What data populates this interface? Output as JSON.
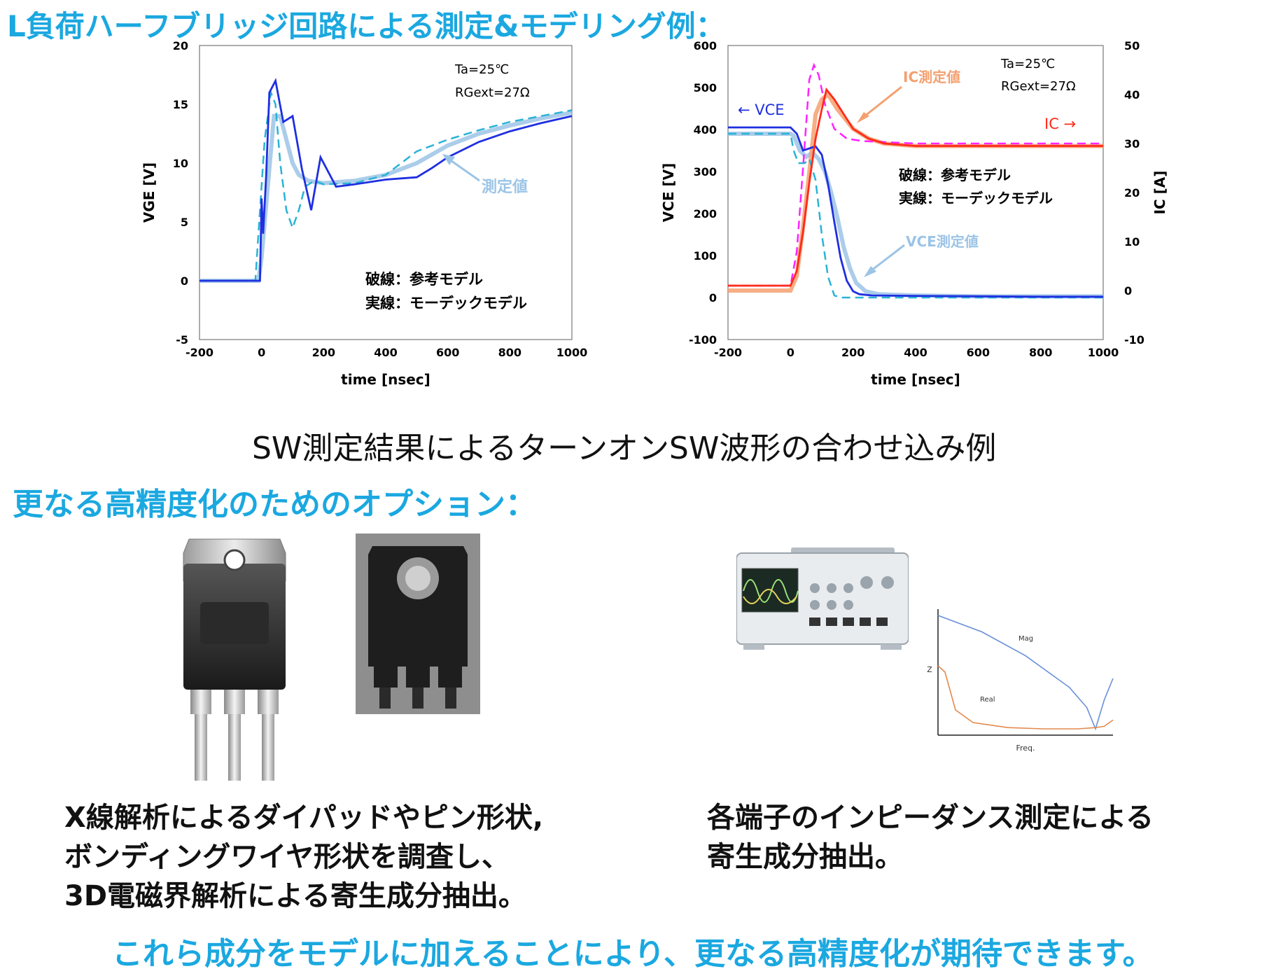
{
  "title": "L負荷ハーフブリッジ回路による測定&モデリング例：",
  "subtitle": "SW測定結果によるターンオンSW波形の合わせ込み例",
  "options_title": "更なる高精度化のためのオプション：",
  "caption_left": [
    "X線解析によるダイパッドやピン形状,",
    "ボンディングワイヤ形状を調査し、",
    "3D電磁界解析による寄生成分抽出。"
  ],
  "caption_right": [
    "各端子のインピーダンス測定による",
    "寄生成分抽出。"
  ],
  "conclusion": "これら成分をモデルに加えることにより、更なる高精度化が期待できます。",
  "colors": {
    "accent": "#1ba8e0",
    "model_blue": "#1f2fe0",
    "meas_light_blue": "#9cc4e6",
    "ref_dash_blue": "#2ab3d6",
    "ic_red": "#ff2a1a",
    "ic_meas_orange": "#f4a070",
    "ic_ref_magenta": "#ff22ff"
  },
  "chart_data": [
    {
      "type": "line",
      "xlabel": "time [nsec]",
      "ylabel": "VGE [V]",
      "xlim": [
        -200,
        1000
      ],
      "ylim": [
        -5,
        20
      ],
      "xticks": [
        -200,
        0,
        200,
        400,
        600,
        800,
        1000
      ],
      "yticks": [
        -5,
        0,
        5,
        10,
        15,
        20
      ],
      "annotations": [
        "Ta=25℃",
        "RGext=27Ω",
        "測定値",
        "破線：参考モデル",
        "実線：モーデックモデル"
      ],
      "series": [
        {
          "name": "測定値",
          "style": "measured",
          "x": [
            -200,
            -10,
            0,
            20,
            40,
            60,
            80,
            100,
            120,
            150,
            200,
            300,
            400,
            500,
            600,
            700,
            800,
            900,
            1000
          ],
          "y": [
            0,
            0,
            2,
            8,
            14,
            14,
            12,
            10,
            9,
            8.5,
            8.3,
            8.5,
            9,
            10,
            11.5,
            12.5,
            13.2,
            13.8,
            14.3
          ]
        },
        {
          "name": "破線：参考モデル",
          "style": "dashed",
          "x": [
            -200,
            -20,
            -5,
            10,
            30,
            45,
            60,
            80,
            100,
            120,
            140,
            170,
            200,
            300,
            400,
            500,
            600,
            700,
            800,
            900,
            1000
          ],
          "y": [
            0,
            0,
            6,
            12,
            16,
            15,
            10,
            6,
            4.5,
            6,
            8,
            8.5,
            8.2,
            8.3,
            9,
            11,
            12,
            12.8,
            13.5,
            14,
            14.5
          ]
        },
        {
          "name": "実線：モーデックモデル",
          "style": "solid",
          "x": [
            -200,
            -5,
            0,
            5,
            15,
            25,
            45,
            70,
            100,
            130,
            160,
            190,
            240,
            300,
            350,
            400,
            450,
            500,
            550,
            600,
            700,
            800,
            900,
            1000
          ],
          "y": [
            0,
            0,
            7,
            4,
            9,
            16,
            17,
            13.5,
            14,
            9.5,
            6,
            10.5,
            8,
            8.2,
            8.4,
            8.6,
            8.7,
            8.8,
            9.6,
            10.5,
            11.8,
            12.7,
            13.4,
            14
          ]
        }
      ]
    },
    {
      "type": "line",
      "xlabel": "time [nsec]",
      "ylabel": "VCE [V]",
      "y2label": "IC [A]",
      "xlim": [
        -200,
        1000
      ],
      "ylim": [
        -100,
        600
      ],
      "y2lim": [
        -10,
        50
      ],
      "xticks": [
        -200,
        0,
        200,
        400,
        600,
        800,
        1000
      ],
      "yticks": [
        -100,
        0,
        100,
        200,
        300,
        400,
        500,
        600
      ],
      "y2ticks": [
        -10,
        0,
        10,
        20,
        30,
        40,
        50
      ],
      "annotations": [
        "Ta=25℃",
        "RGext=27Ω",
        "← VCE",
        "IC →",
        "IC測定値",
        "VCE測定値",
        "破線：参考モデル",
        "実線：モーデックモデル"
      ],
      "series": [
        {
          "name": "VCE測定値",
          "axis": "left",
          "style": "measured",
          "x": [
            -200,
            0,
            10,
            30,
            50,
            70,
            90,
            110,
            130,
            150,
            170,
            190,
            210,
            240,
            280,
            400,
            600,
            800,
            1000
          ],
          "y": [
            390,
            390,
            385,
            350,
            335,
            345,
            330,
            300,
            250,
            190,
            120,
            70,
            35,
            15,
            8,
            5,
            3,
            3,
            3
          ]
        },
        {
          "name": "VCE 参考モデル",
          "axis": "left",
          "style": "dashed",
          "x": [
            -200,
            0,
            10,
            25,
            45,
            60,
            80,
            100,
            120,
            140,
            160,
            200,
            1000
          ],
          "y": [
            390,
            390,
            350,
            320,
            320,
            330,
            280,
            150,
            50,
            5,
            0,
            0,
            0
          ]
        },
        {
          "name": "VCE モーデックモデル",
          "axis": "left",
          "style": "solid",
          "x": [
            -200,
            0,
            20,
            40,
            60,
            80,
            100,
            120,
            140,
            160,
            180,
            200,
            220,
            260,
            400,
            600,
            800,
            1000
          ],
          "y": [
            405,
            405,
            390,
            350,
            355,
            360,
            340,
            270,
            180,
            95,
            40,
            15,
            8,
            5,
            4,
            3,
            2,
            2
          ]
        },
        {
          "name": "IC測定値",
          "axis": "right",
          "style": "measured",
          "x": [
            -200,
            0,
            20,
            40,
            60,
            80,
            100,
            120,
            150,
            200,
            250,
            300,
            400,
            600,
            800,
            1000
          ],
          "y": [
            0,
            0,
            3,
            13,
            24,
            36,
            39,
            40,
            37,
            33,
            31,
            30,
            29.5,
            29.5,
            29.5,
            29.5
          ]
        },
        {
          "name": "IC 参考モデル",
          "axis": "right",
          "style": "dashed",
          "x": [
            -200,
            0,
            20,
            40,
            60,
            75,
            90,
            110,
            140,
            180,
            230,
            300,
            400,
            600,
            1000
          ],
          "y": [
            1,
            1,
            8,
            25,
            43,
            46,
            44,
            38,
            33,
            31,
            30.5,
            30.3,
            30,
            30,
            30
          ]
        },
        {
          "name": "IC モーデックモデル",
          "axis": "right",
          "style": "solid",
          "x": [
            -200,
            0,
            20,
            40,
            60,
            80,
            100,
            115,
            140,
            170,
            200,
            250,
            300,
            400,
            600,
            1000
          ],
          "y": [
            1,
            1,
            4,
            12,
            22,
            31,
            37,
            41,
            39,
            36,
            33,
            31,
            30,
            29.5,
            29.5,
            29.5
          ]
        }
      ]
    },
    {
      "type": "line",
      "xlabel": "Freq.",
      "ylabel": "Z",
      "annotations": [
        "Mag",
        "Real"
      ],
      "series": [
        {
          "name": "Mag",
          "x": [
            0,
            0.25,
            0.5,
            0.75,
            0.85,
            0.9,
            0.95,
            1.0
          ],
          "y": [
            0.95,
            0.82,
            0.63,
            0.38,
            0.22,
            0.05,
            0.28,
            0.45
          ]
        },
        {
          "name": "Real",
          "x": [
            0,
            0.04,
            0.1,
            0.2,
            0.4,
            0.6,
            0.8,
            0.9,
            0.95,
            1.0
          ],
          "y": [
            0.55,
            0.5,
            0.2,
            0.1,
            0.06,
            0.05,
            0.05,
            0.06,
            0.07,
            0.12
          ]
        }
      ]
    }
  ]
}
